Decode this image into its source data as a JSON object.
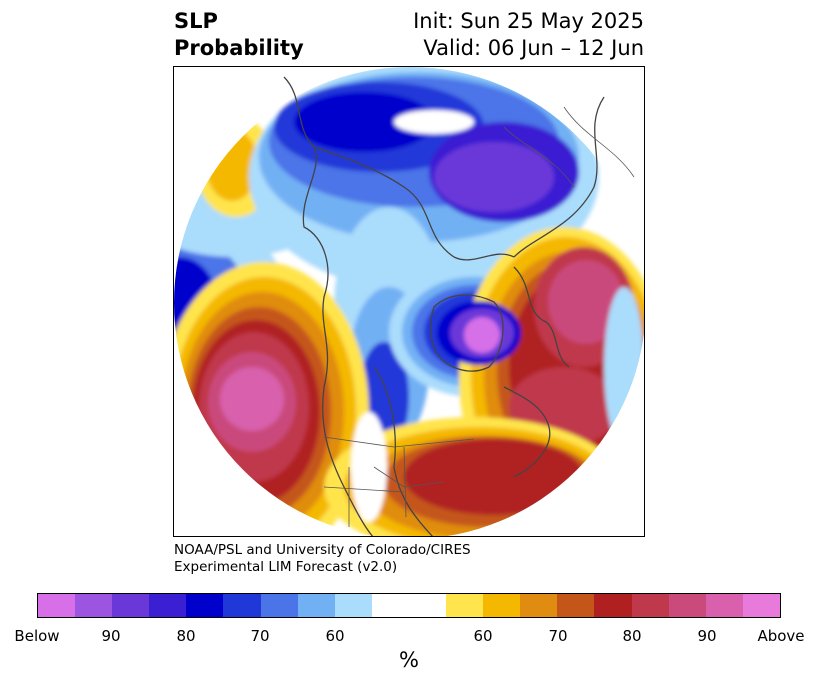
{
  "header": {
    "title_line1": "SLP",
    "title_line2": "Probability",
    "init_label": "Init: Sun 25 May 2025",
    "valid_label": "Valid: 06 Jun – 12 Jun"
  },
  "credit": {
    "line1": "NOAA/PSL and University of Colorado/CIRES",
    "line2": "Experimental LIM Forecast (v2.0)"
  },
  "colorbar": {
    "unit": "%",
    "colors": [
      "#d66fe8",
      "#9b55e0",
      "#6a38d8",
      "#3b1fd2",
      "#0000cc",
      "#2138d8",
      "#4b74e8",
      "#72b0f4",
      "#aadcfc",
      "#ffffff",
      "#ffffff",
      "#ffe44c",
      "#f4b800",
      "#e08c10",
      "#c4561a",
      "#b02020",
      "#c0384c",
      "#ca4a7c",
      "#d860ac",
      "#e87adc"
    ],
    "ticks": [
      "Below",
      "90",
      "80",
      "70",
      "60",
      "60",
      "70",
      "80",
      "90",
      "Above"
    ],
    "colors_legend": {
      "below_normal": "blue-purple",
      "above_normal": "yellow-red-magenta"
    }
  },
  "map": {
    "projection": "north-polar-stereographic",
    "features": [
      "coastlines",
      "country-borders",
      "state-borders",
      "probability-shading"
    ]
  }
}
